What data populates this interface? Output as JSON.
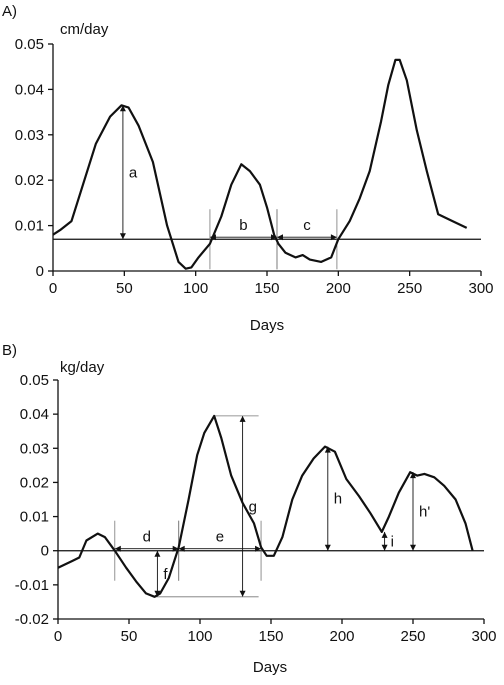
{
  "chart_data": [
    {
      "type": "line",
      "panel_label": "A)",
      "ylabel": "cm/day",
      "xlabel": "Days",
      "xlim": [
        0,
        300
      ],
      "ylim": [
        0,
        0.05
      ],
      "xticks": [
        "0",
        "50",
        "100",
        "150",
        "200",
        "250",
        "300"
      ],
      "yticks": [
        "0",
        "0.01",
        "0.02",
        "0.03",
        "0.04",
        "0.05"
      ],
      "reference_line": 0.007,
      "series": [
        {
          "x": [
            0,
            5,
            13,
            20,
            30,
            40,
            48,
            53,
            60,
            70,
            80,
            88,
            93,
            97,
            102,
            110,
            118,
            125,
            132,
            138,
            145,
            150,
            155,
            158,
            163,
            170,
            175,
            180,
            188,
            195,
            200,
            208,
            215,
            222,
            230,
            235,
            240,
            243,
            248,
            255,
            262,
            270,
            280,
            290
          ],
          "y": [
            0.008,
            0.009,
            0.011,
            0.018,
            0.028,
            0.034,
            0.0365,
            0.036,
            0.032,
            0.024,
            0.01,
            0.002,
            0.0005,
            0.0008,
            0.003,
            0.006,
            0.012,
            0.019,
            0.0235,
            0.022,
            0.019,
            0.014,
            0.008,
            0.006,
            0.004,
            0.003,
            0.0035,
            0.0025,
            0.002,
            0.003,
            0.007,
            0.011,
            0.016,
            0.022,
            0.033,
            0.041,
            0.0465,
            0.0465,
            0.042,
            0.031,
            0.022,
            0.0125,
            0.011,
            0.0095
          ]
        }
      ],
      "annotations": [
        {
          "label": "a",
          "type": "vertical",
          "x": 49,
          "y_from": 0.007,
          "y_to": 0.0365
        },
        {
          "label": "b",
          "type": "horizontal",
          "x_from": 110,
          "x_to": 157,
          "y": 0.007
        },
        {
          "label": "c",
          "type": "horizontal",
          "x_from": 157,
          "x_to": 199,
          "y": 0.007
        }
      ]
    },
    {
      "type": "line",
      "panel_label": "B)",
      "ylabel": "kg/day",
      "xlabel": "Days",
      "xlim": [
        0,
        300
      ],
      "ylim": [
        -0.02,
        0.05
      ],
      "xticks": [
        "0",
        "50",
        "100",
        "150",
        "200",
        "250",
        "300"
      ],
      "yticks": [
        "-0.02",
        "-0.01",
        "0",
        "0.01",
        "0.02",
        "0.03",
        "0.04",
        "0.05"
      ],
      "series": [
        {
          "x": [
            0,
            10,
            15,
            20,
            28,
            33,
            40,
            48,
            55,
            62,
            68,
            72,
            78,
            85,
            92,
            98,
            103,
            110,
            115,
            122,
            130,
            138,
            143,
            147,
            152,
            158,
            165,
            172,
            180,
            188,
            195,
            203,
            212,
            220,
            228,
            233,
            240,
            248,
            253,
            258,
            265,
            272,
            280,
            287,
            292
          ],
          "y": [
            -0.005,
            -0.003,
            -0.002,
            0.003,
            0.005,
            0.004,
            0.0,
            -0.005,
            -0.009,
            -0.0125,
            -0.0135,
            -0.0125,
            -0.008,
            0.001,
            0.015,
            0.028,
            0.0345,
            0.0395,
            0.033,
            0.022,
            0.014,
            0.008,
            0.001,
            -0.0015,
            -0.0015,
            0.004,
            0.015,
            0.022,
            0.027,
            0.0305,
            0.029,
            0.021,
            0.016,
            0.011,
            0.0055,
            0.01,
            0.017,
            0.023,
            0.022,
            0.0225,
            0.0215,
            0.019,
            0.015,
            0.008,
            0.0
          ]
        }
      ],
      "annotations": [
        {
          "label": "d",
          "type": "horizontal",
          "x_from": 40,
          "x_to": 85,
          "y": 0
        },
        {
          "label": "e",
          "type": "horizontal",
          "x_from": 85,
          "x_to": 143,
          "y": 0
        },
        {
          "label": "f",
          "type": "vertical",
          "x": 70,
          "y_from": 0,
          "y_to": -0.0135
        },
        {
          "label": "g",
          "type": "vertical",
          "x": 130,
          "y_from": -0.0135,
          "y_to": 0.0395
        },
        {
          "label": "h",
          "type": "vertical",
          "x": 190,
          "y_from": 0,
          "y_to": 0.0305
        },
        {
          "label": "i",
          "type": "vertical",
          "x": 230,
          "y_from": 0,
          "y_to": 0.0055
        },
        {
          "label": "h'",
          "type": "vertical",
          "x": 250,
          "y_from": 0,
          "y_to": 0.023
        }
      ]
    }
  ]
}
